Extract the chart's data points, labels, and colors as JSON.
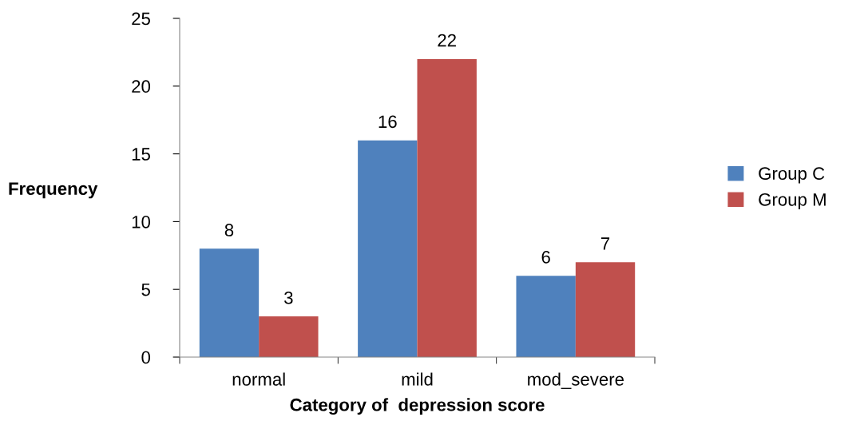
{
  "chart_data": {
    "type": "bar",
    "xlabel": "Category of  depression score",
    "ylabel": "Frequency",
    "categories": [
      "normal",
      "mild",
      "mod_severe"
    ],
    "series": [
      {
        "name": "Group C",
        "color": "#4f81bd",
        "values": [
          8,
          16,
          6
        ]
      },
      {
        "name": "Group M",
        "color": "#c0504d",
        "values": [
          3,
          22,
          7
        ]
      }
    ],
    "ylim": [
      0,
      25
    ],
    "yticks": [
      0,
      5,
      10,
      15,
      20,
      25
    ],
    "grid": false,
    "legend": "right",
    "data_labels": true
  }
}
